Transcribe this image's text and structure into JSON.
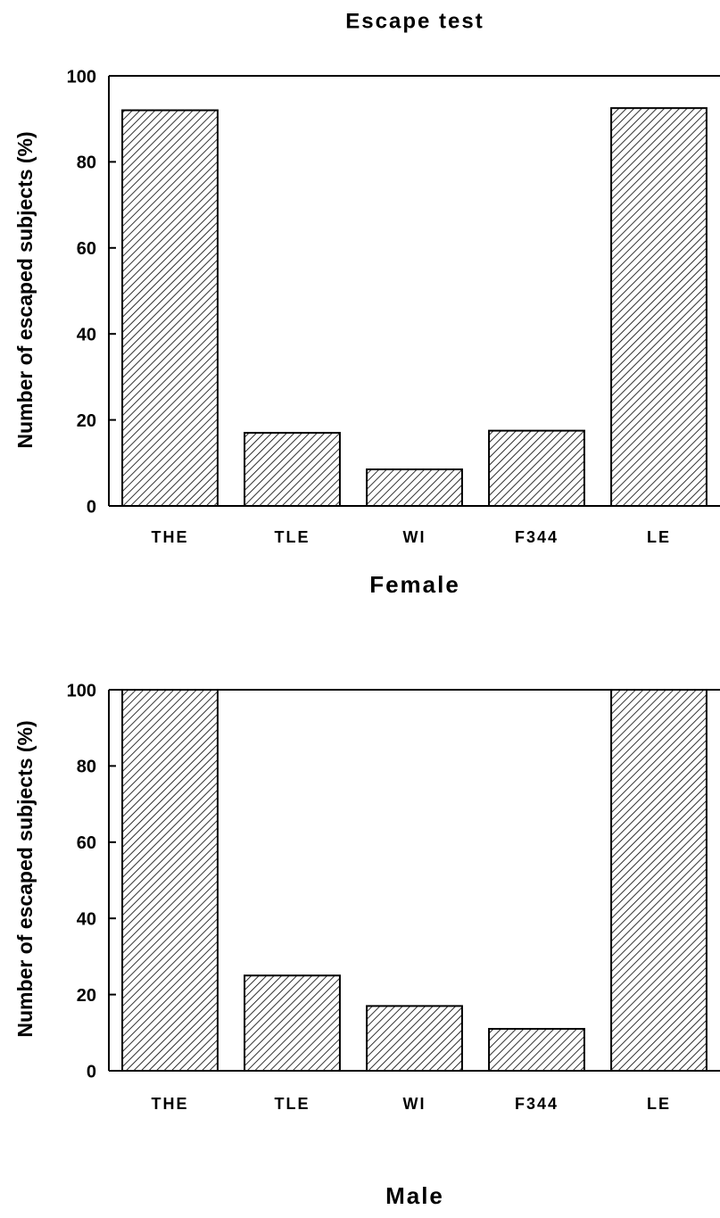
{
  "chart_data": [
    {
      "type": "bar",
      "title": "Escape test",
      "xlabel": "Female",
      "ylabel": "Number of escaped subjects (%)",
      "categories": [
        "THE",
        "TLE",
        "WI",
        "F344",
        "LE"
      ],
      "values": [
        92,
        17,
        8.5,
        17.5,
        92.5
      ],
      "color": "#000000",
      "hatch": true,
      "ylim": [
        0,
        100
      ],
      "yticks": [
        0,
        20,
        40,
        60,
        80,
        100
      ]
    },
    {
      "type": "bar",
      "xlabel": "Male",
      "ylabel": "Number of escaped subjects (%)",
      "categories": [
        "THE",
        "TLE",
        "WI",
        "F344",
        "LE"
      ],
      "values": [
        100,
        25,
        17,
        11,
        100
      ],
      "color": "#000000",
      "hatch": true,
      "ylim": [
        0,
        100
      ],
      "yticks": [
        0,
        20,
        40,
        60,
        80,
        100
      ]
    }
  ]
}
